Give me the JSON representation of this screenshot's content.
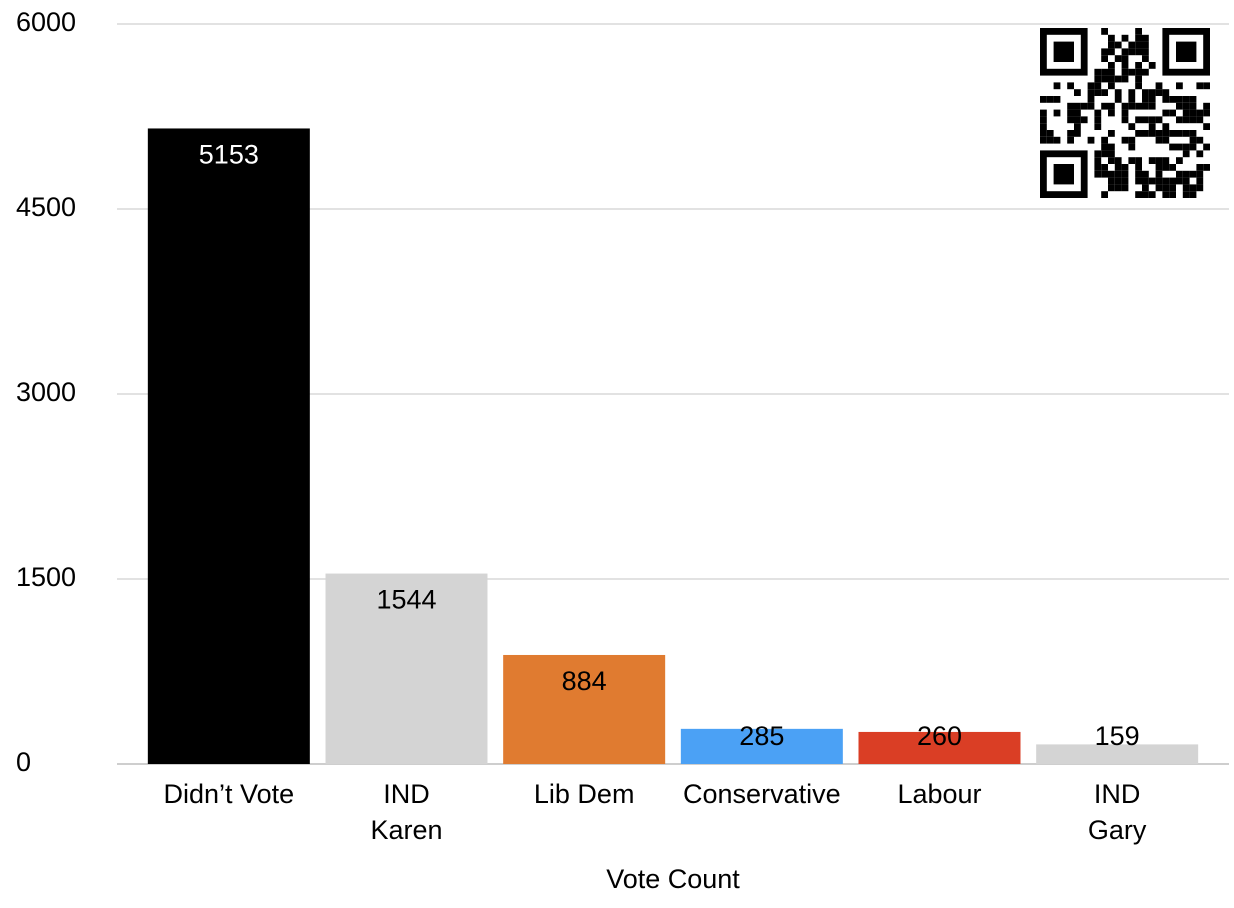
{
  "chart_data": {
    "type": "bar",
    "x_label": "Vote Count",
    "categories": [
      "Didn’t Vote",
      "IND\nKaren",
      "Lib Dem",
      "Conservative",
      "Labour",
      "IND\nGary"
    ],
    "values": [
      5153,
      1544,
      884,
      285,
      260,
      159
    ],
    "colors": [
      "#000000",
      "#d4d4d4",
      "#e07b30",
      "#4ba1f5",
      "#da3e25",
      "#d4d4d4"
    ],
    "ylim": [
      0,
      6000
    ],
    "yticks": [
      0,
      1500,
      3000,
      4500,
      6000
    ],
    "grid": true
  }
}
